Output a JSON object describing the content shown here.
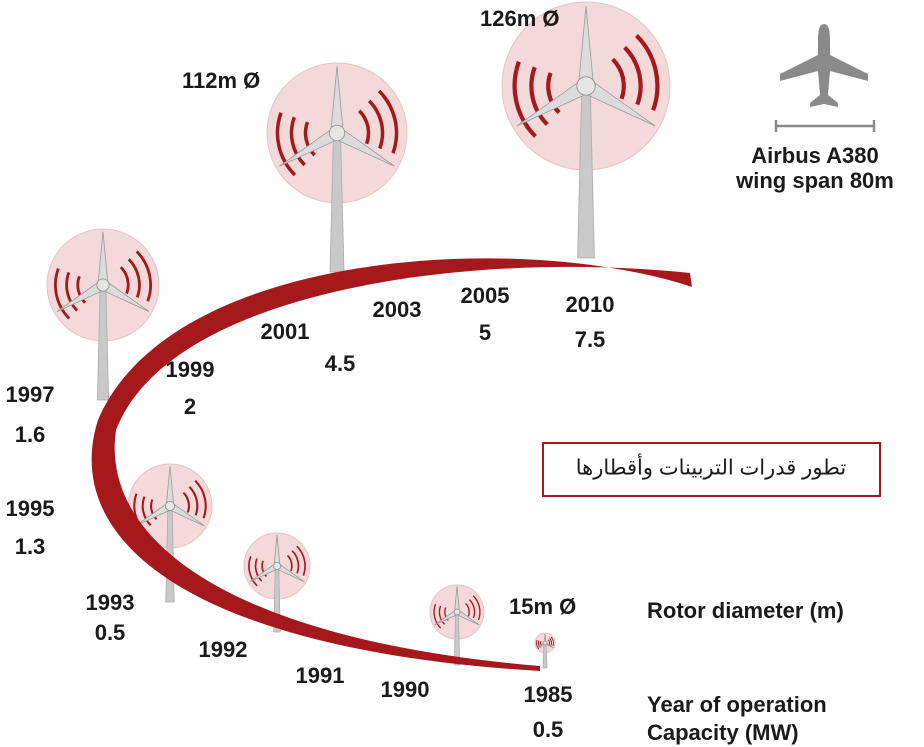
{
  "diameters": [
    "126m Ø",
    "112m Ø",
    "15m Ø"
  ],
  "milestones": [
    {
      "year": "1997",
      "capacity": "1.6"
    },
    {
      "year": "1995",
      "capacity": "1.3"
    },
    {
      "year": "1993",
      "capacity": "0.5"
    },
    {
      "year": "1992"
    },
    {
      "year": "1991"
    },
    {
      "year": "1990"
    },
    {
      "year": "1985",
      "capacity": "0.5"
    },
    {
      "year": "1999",
      "capacity": "2"
    },
    {
      "year": "2001",
      "capacity": "4.5"
    },
    {
      "year": "2003"
    },
    {
      "year": "2005",
      "capacity": "5"
    },
    {
      "year": "2010",
      "capacity": "7.5"
    }
  ],
  "legend": {
    "rotor_diameter": "Rotor diameter (m)",
    "year": "Year of operation",
    "capacity": "Capacity (MW)"
  },
  "airbus": {
    "line1": "Airbus A380",
    "line2": "wing span 80m"
  },
  "caption": "تطور قدرات التربينات وأقطارها"
}
